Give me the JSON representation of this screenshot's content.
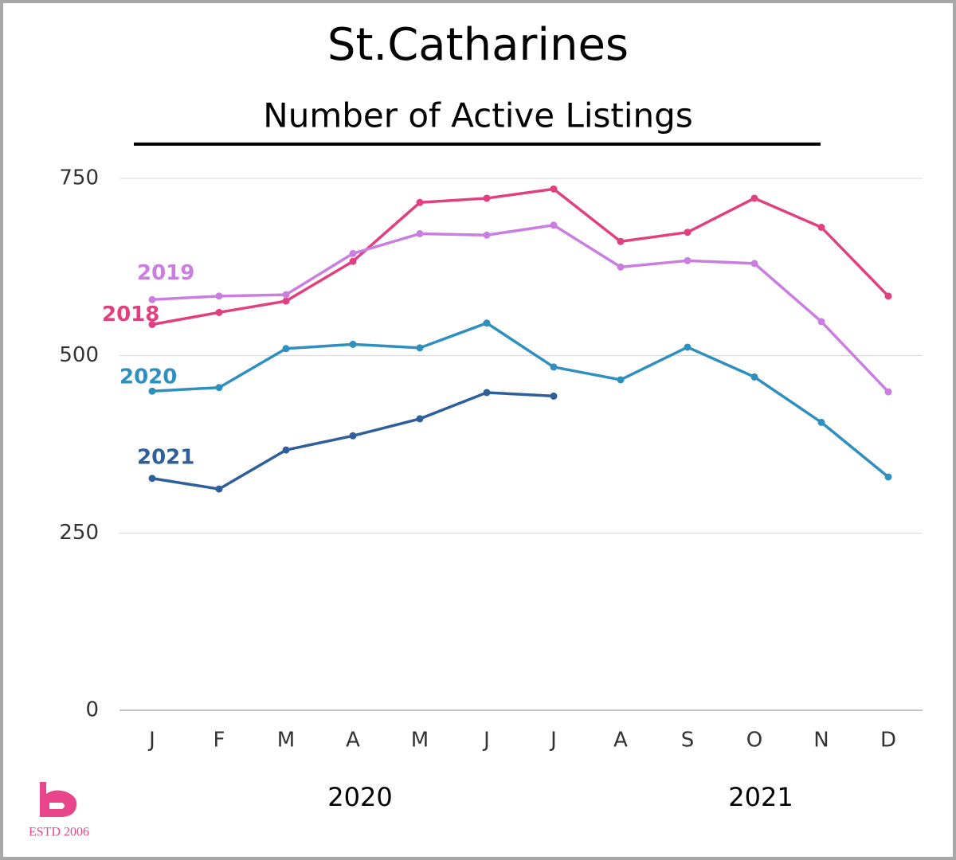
{
  "chart_data": {
    "type": "line",
    "title": "St.Catharines",
    "subtitle": "Number of Active Listings",
    "categories": [
      "J",
      "F",
      "M",
      "A",
      "M",
      "J",
      "J",
      "A",
      "S",
      "O",
      "N",
      "D"
    ],
    "x_group_labels": [
      "2020",
      "2021"
    ],
    "series": [
      {
        "name": "2018",
        "color": "#e0407f",
        "values": [
          544,
          561,
          577,
          633,
          716,
          722,
          735,
          661,
          674,
          722,
          681,
          584
        ]
      },
      {
        "name": "2019",
        "color": "#c97ee0",
        "values": [
          579,
          584,
          586,
          644,
          672,
          670,
          684,
          625,
          634,
          630,
          548,
          449
        ]
      },
      {
        "name": "2020",
        "color": "#2f8fbf",
        "values": [
          450,
          455,
          510,
          516,
          511,
          546,
          484,
          466,
          512,
          470,
          406,
          329
        ]
      },
      {
        "name": "2021",
        "color": "#2f5f9a",
        "values": [
          327,
          312,
          367,
          387,
          411,
          448,
          443,
          null,
          null,
          null,
          null,
          null
        ]
      }
    ],
    "ylim": [
      0,
      750
    ],
    "yticks": [
      0,
      250,
      500,
      750
    ],
    "grid": true,
    "logo_text": "ESTD 2006"
  }
}
